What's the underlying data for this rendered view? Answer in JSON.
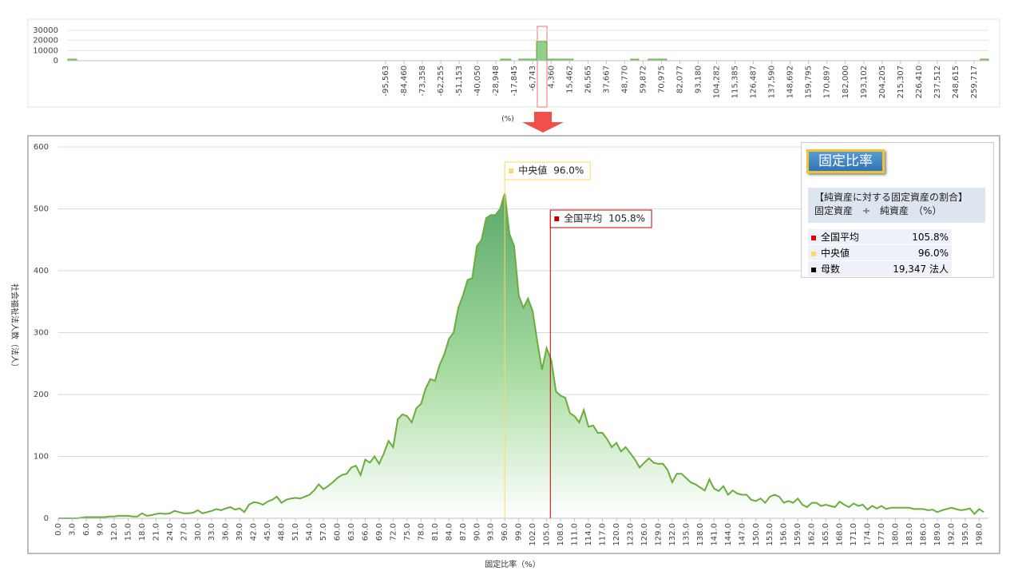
{
  "chart_data": [
    {
      "type": "histogram",
      "xlabel": "(%)",
      "bins": [
        -287400,
        -282100,
        -26160,
        -19890,
        -15070,
        -4460,
        1800,
        17700,
        52400,
        57200,
        63000,
        74100,
        263500,
        268400
      ],
      "counts": [
        1500,
        0,
        1500,
        0,
        1500,
        19000,
        1500,
        0,
        1500,
        0,
        1500,
        0,
        1500
      ],
      "color": "#92d08a",
      "xlim": [
        -287400,
        268400
      ],
      "ylim": [
        0,
        30000
      ],
      "yticks": [
        0,
        10000,
        20000,
        30000
      ],
      "xticks": [
        {
          "value": -95563,
          "label": "-95,563"
        },
        {
          "value": -84460,
          "label": "-84,460"
        },
        {
          "value": -73358,
          "label": "-73,358"
        },
        {
          "value": -62255,
          "label": "-62,255"
        },
        {
          "value": -51153,
          "label": "-51,153"
        },
        {
          "value": -40050,
          "label": "-40,050"
        },
        {
          "value": -28948,
          "label": "-28,948"
        },
        {
          "value": -17845,
          "label": "-17,845"
        },
        {
          "value": -6743,
          "label": "-6,743"
        },
        {
          "value": 4360,
          "label": "4,360"
        },
        {
          "value": 15462,
          "label": "15,462"
        },
        {
          "value": 26565,
          "label": "26,565"
        },
        {
          "value": 37667,
          "label": "37,667"
        },
        {
          "value": 48770,
          "label": "48,770"
        },
        {
          "value": 59872,
          "label": "59,872"
        },
        {
          "value": 70975,
          "label": "70,975"
        },
        {
          "value": 82077,
          "label": "82,077"
        },
        {
          "value": 93180,
          "label": "93,180"
        },
        {
          "value": 104282,
          "label": "104,282"
        },
        {
          "value": 115385,
          "label": "115,385"
        },
        {
          "value": 126487,
          "label": "126,487"
        },
        {
          "value": 137590,
          "label": "137,590"
        },
        {
          "value": 148692,
          "label": "148,692"
        },
        {
          "value": 159795,
          "label": "159,795"
        },
        {
          "value": 170897,
          "label": "170,897"
        },
        {
          "value": 182000,
          "label": "182,000"
        },
        {
          "value": 193102,
          "label": "193,102"
        },
        {
          "value": 204205,
          "label": "204,205"
        },
        {
          "value": 215307,
          "label": "215,307"
        },
        {
          "value": 226410,
          "label": "226,410"
        },
        {
          "value": 237512,
          "label": "237,512"
        },
        {
          "value": 248615,
          "label": "248,615"
        },
        {
          "value": 259717,
          "label": "259,717"
        }
      ]
    },
    {
      "type": "area",
      "xlabel": "固定比率（%）",
      "ylabel": "社会福祉法人数（法人）",
      "color": "#6aad3d",
      "grid": true,
      "x": [
        0,
        1,
        2,
        3,
        4,
        5,
        6,
        7,
        8,
        9,
        10,
        11,
        12,
        13,
        14,
        15,
        16,
        17,
        18,
        19,
        20,
        21,
        22,
        23,
        24,
        25,
        26,
        27,
        28,
        29,
        30,
        31,
        32,
        33,
        34,
        35,
        36,
        37,
        38,
        39,
        40,
        41,
        42,
        43,
        44,
        45,
        46,
        47,
        48,
        49,
        50,
        51,
        52,
        53,
        54,
        55,
        56,
        57,
        58,
        59,
        60,
        61,
        62,
        63,
        64,
        65,
        66,
        67,
        68,
        69,
        70,
        71,
        72,
        73,
        74,
        75,
        76,
        77,
        78,
        79,
        80,
        81,
        82,
        83,
        84,
        85,
        86,
        87,
        88,
        89,
        90,
        91,
        92,
        93,
        94,
        95,
        96,
        97,
        98,
        99,
        100,
        101,
        102,
        103,
        104,
        105,
        106,
        107,
        108,
        109,
        110,
        111,
        112,
        113,
        114,
        115,
        116,
        117,
        118,
        119,
        120,
        121,
        122,
        123,
        124,
        125,
        126,
        127,
        128,
        129,
        130,
        131,
        132,
        133,
        134,
        135,
        136,
        137,
        138,
        139,
        140,
        141,
        142,
        143,
        144,
        145,
        146,
        147,
        148,
        149,
        150,
        151,
        152,
        153,
        154,
        155,
        156,
        157,
        158,
        159,
        160,
        161,
        162,
        163,
        164,
        165,
        166,
        167,
        168,
        169,
        170,
        171,
        172,
        173,
        174,
        175,
        176,
        177,
        178,
        179,
        180,
        181,
        182,
        183,
        184,
        185,
        186,
        187,
        188,
        189,
        190,
        191,
        192,
        193,
        194,
        195,
        196,
        197,
        198,
        199
      ],
      "values": [
        0,
        0,
        0,
        0,
        0,
        1,
        2,
        2,
        2,
        2,
        2,
        3,
        3,
        4,
        4,
        4,
        3,
        3,
        8,
        4,
        5,
        7,
        8,
        7,
        8,
        12,
        10,
        8,
        8,
        9,
        13,
        8,
        10,
        12,
        15,
        13,
        16,
        18,
        14,
        16,
        10,
        22,
        26,
        25,
        22,
        27,
        30,
        35,
        25,
        30,
        32,
        33,
        32,
        35,
        38,
        45,
        55,
        47,
        52,
        58,
        65,
        70,
        72,
        82,
        85,
        70,
        95,
        90,
        100,
        88,
        105,
        125,
        115,
        160,
        168,
        165,
        155,
        178,
        185,
        210,
        225,
        222,
        248,
        265,
        290,
        300,
        340,
        360,
        385,
        388,
        440,
        450,
        485,
        490,
        490,
        500,
        525,
        460,
        440,
        360,
        340,
        355,
        335,
        285,
        240,
        275,
        255,
        205,
        198,
        195,
        170,
        165,
        155,
        175,
        148,
        150,
        138,
        138,
        128,
        115,
        122,
        108,
        115,
        105,
        95,
        82,
        90,
        97,
        90,
        88,
        88,
        78,
        58,
        72,
        72,
        65,
        58,
        55,
        50,
        45,
        63,
        48,
        44,
        52,
        38,
        45,
        40,
        38,
        38,
        30,
        28,
        32,
        25,
        35,
        38,
        35,
        25,
        28,
        25,
        32,
        22,
        18,
        25,
        25,
        20,
        22,
        20,
        18,
        27,
        22,
        18,
        24,
        20,
        22,
        14,
        20,
        16,
        20,
        15,
        17,
        17,
        17,
        17,
        17,
        15,
        15,
        15,
        13,
        14,
        10,
        13,
        15,
        17,
        15,
        13,
        14,
        16,
        7,
        15,
        10
      ],
      "xlim": [
        0,
        200
      ],
      "ylim": [
        0,
        600
      ],
      "yticks": [
        0,
        100,
        200,
        300,
        400,
        500,
        600
      ],
      "xticks": [
        {
          "value": 0,
          "label": "0.0"
        },
        {
          "value": 3,
          "label": "3.0"
        },
        {
          "value": 6,
          "label": "6.0"
        },
        {
          "value": 9,
          "label": "9.0"
        },
        {
          "value": 12,
          "label": "12.0"
        },
        {
          "value": 15,
          "label": "15.0"
        },
        {
          "value": 18,
          "label": "18.0"
        },
        {
          "value": 21,
          "label": "21.0"
        },
        {
          "value": 24,
          "label": "24.0"
        },
        {
          "value": 27,
          "label": "27.0"
        },
        {
          "value": 30,
          "label": "30.0"
        },
        {
          "value": 33,
          "label": "33.0"
        },
        {
          "value": 36,
          "label": "36.0"
        },
        {
          "value": 39,
          "label": "39.0"
        },
        {
          "value": 42,
          "label": "42.0"
        },
        {
          "value": 45,
          "label": "45.0"
        },
        {
          "value": 48,
          "label": "48.0"
        },
        {
          "value": 51,
          "label": "51.0"
        },
        {
          "value": 54,
          "label": "54.0"
        },
        {
          "value": 57,
          "label": "57.0"
        },
        {
          "value": 60,
          "label": "60.0"
        },
        {
          "value": 63,
          "label": "63.0"
        },
        {
          "value": 66,
          "label": "66.0"
        },
        {
          "value": 69,
          "label": "69.0"
        },
        {
          "value": 72,
          "label": "72.0"
        },
        {
          "value": 75,
          "label": "75.0"
        },
        {
          "value": 78,
          "label": "78.0"
        },
        {
          "value": 81,
          "label": "81.0"
        },
        {
          "value": 84,
          "label": "84.0"
        },
        {
          "value": 87,
          "label": "87.0"
        },
        {
          "value": 90,
          "label": "90.0"
        },
        {
          "value": 93,
          "label": "93.0"
        },
        {
          "value": 96,
          "label": "96.0"
        },
        {
          "value": 99,
          "label": "99.0"
        },
        {
          "value": 102,
          "label": "102.0"
        },
        {
          "value": 105,
          "label": "105.0"
        },
        {
          "value": 108,
          "label": "108.0"
        },
        {
          "value": 111,
          "label": "111.0"
        },
        {
          "value": 114,
          "label": "114.0"
        },
        {
          "value": 117,
          "label": "117.0"
        },
        {
          "value": 120,
          "label": "120.0"
        },
        {
          "value": 123,
          "label": "123.0"
        },
        {
          "value": 126,
          "label": "126.0"
        },
        {
          "value": 129,
          "label": "129.0"
        },
        {
          "value": 132,
          "label": "132.0"
        },
        {
          "value": 135,
          "label": "135.0"
        },
        {
          "value": 138,
          "label": "138.0"
        },
        {
          "value": 141,
          "label": "141.0"
        },
        {
          "value": 144,
          "label": "144.0"
        },
        {
          "value": 147,
          "label": "147.0"
        },
        {
          "value": 150,
          "label": "150.0"
        },
        {
          "value": 153,
          "label": "153.0"
        },
        {
          "value": 156,
          "label": "156.0"
        },
        {
          "value": 159,
          "label": "159.0"
        },
        {
          "value": 162,
          "label": "162.0"
        },
        {
          "value": 165,
          "label": "165.0"
        },
        {
          "value": 168,
          "label": "168.0"
        },
        {
          "value": 171,
          "label": "171.0"
        },
        {
          "value": 174,
          "label": "174.0"
        },
        {
          "value": 177,
          "label": "177.0"
        },
        {
          "value": 180,
          "label": "180.0"
        },
        {
          "value": 183,
          "label": "183.0"
        },
        {
          "value": 186,
          "label": "186.0"
        },
        {
          "value": 189,
          "label": "189.0"
        },
        {
          "value": 192,
          "label": "192.0"
        },
        {
          "value": 195,
          "label": "195.0"
        },
        {
          "value": 198,
          "label": "198.0"
        }
      ],
      "reference_lines": [
        {
          "name": "中央値",
          "value": 96.0,
          "value_label": "96.0%",
          "color": "#ffd966"
        },
        {
          "name": "全国平均",
          "value": 105.8,
          "value_label": "105.8%",
          "color": "#c00000"
        }
      ]
    }
  ],
  "info_box": {
    "title": "固定比率",
    "description": [
      "【純資産に対する固定資産の割合】",
      "固定資産　÷　純資産　（%）"
    ],
    "rows": [
      {
        "marker": "#e00000",
        "label": "全国平均",
        "value": "105.8%"
      },
      {
        "marker": "#ffd966",
        "label": "中央値",
        "value": "96.0%"
      },
      {
        "marker": "#000000",
        "label": "母数",
        "value": "19,347 法人"
      }
    ]
  }
}
